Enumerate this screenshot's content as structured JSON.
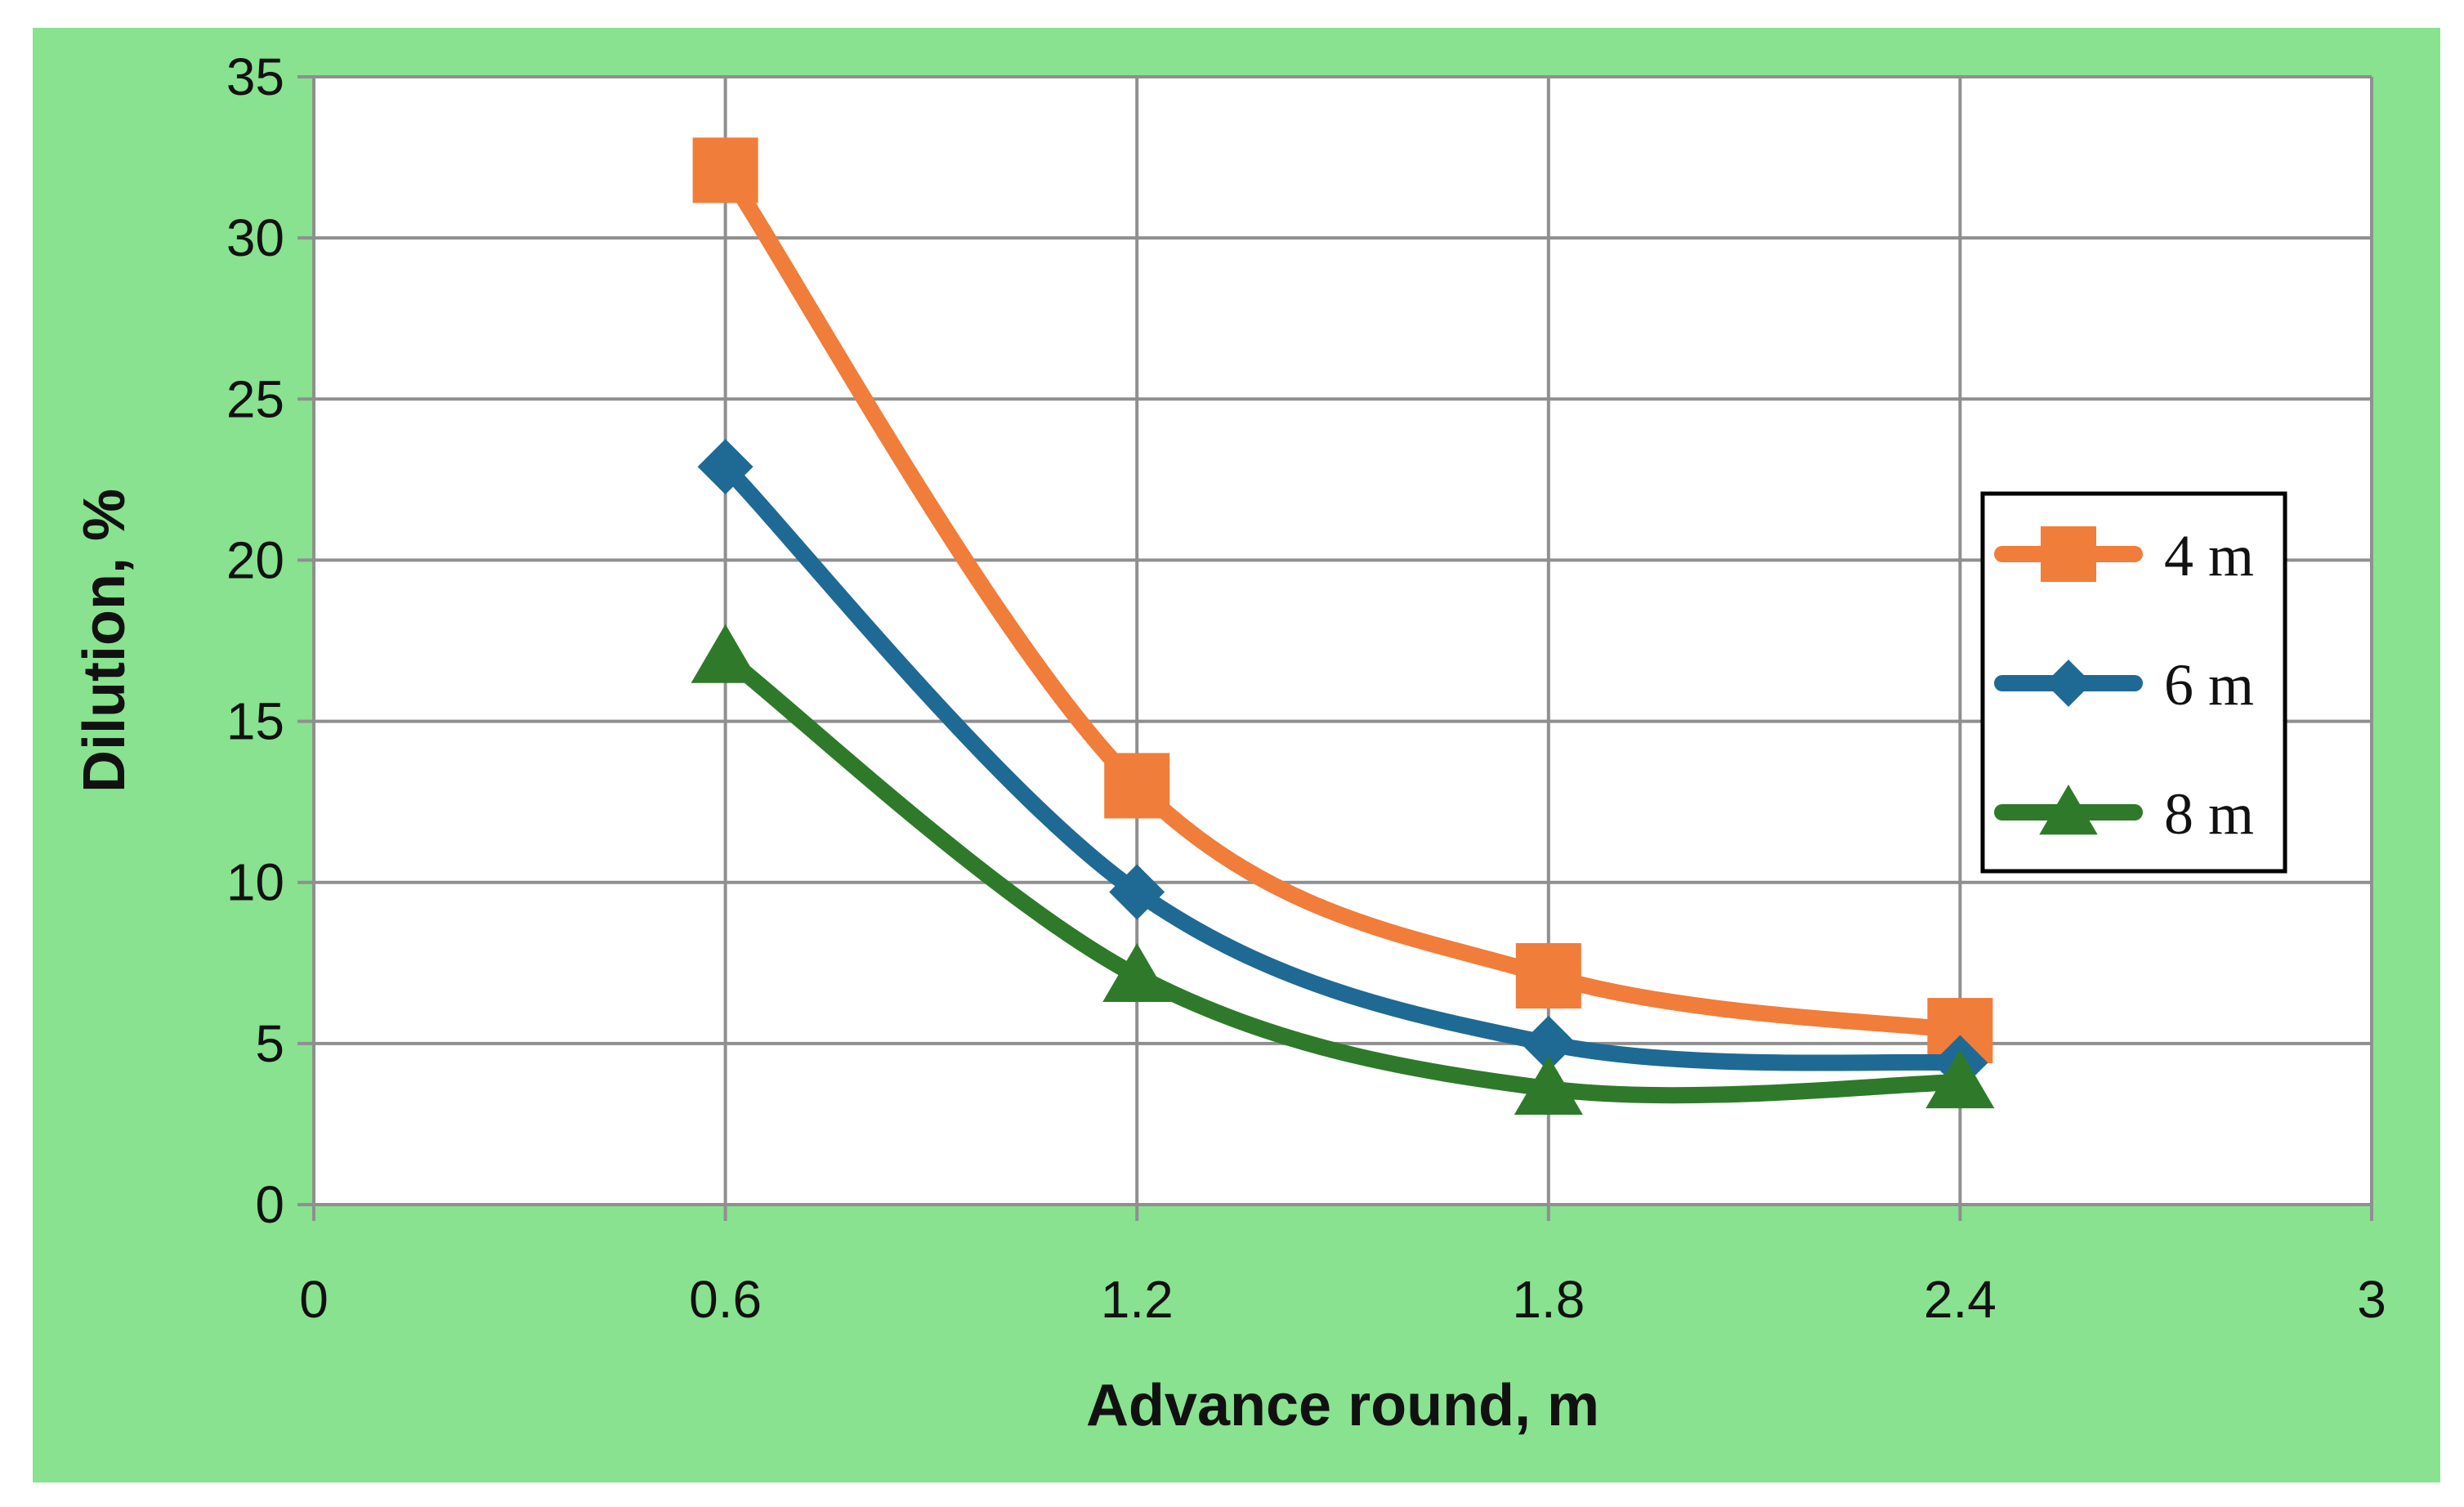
{
  "chart_data": {
    "type": "line",
    "xlabel": "Advance round, m",
    "ylabel": "Dilution, %",
    "xlim": [
      0,
      3
    ],
    "ylim": [
      0,
      35
    ],
    "x_ticks": [
      "0",
      "0.6",
      "1.2",
      "1.8",
      "2.4",
      "3"
    ],
    "y_ticks": [
      "0",
      "5",
      "10",
      "15",
      "20",
      "25",
      "30",
      "35"
    ],
    "x": [
      0.6,
      1.2,
      1.8,
      2.4
    ],
    "grid": true,
    "legend_position": "right",
    "plot_background": "#ffffff",
    "frame_background": "#88e290",
    "series": [
      {
        "name": "4 m",
        "color": "#f07d3a",
        "marker": "square",
        "values": [
          32.1,
          13.0,
          7.1,
          5.4
        ]
      },
      {
        "name": "6 m",
        "color": "#1f6a94",
        "marker": "diamond",
        "values": [
          22.9,
          9.7,
          5.0,
          4.4
        ]
      },
      {
        "name": "8 m",
        "color": "#2e7a2a",
        "marker": "triangle",
        "values": [
          17.0,
          7.1,
          3.6,
          3.8
        ]
      }
    ]
  }
}
